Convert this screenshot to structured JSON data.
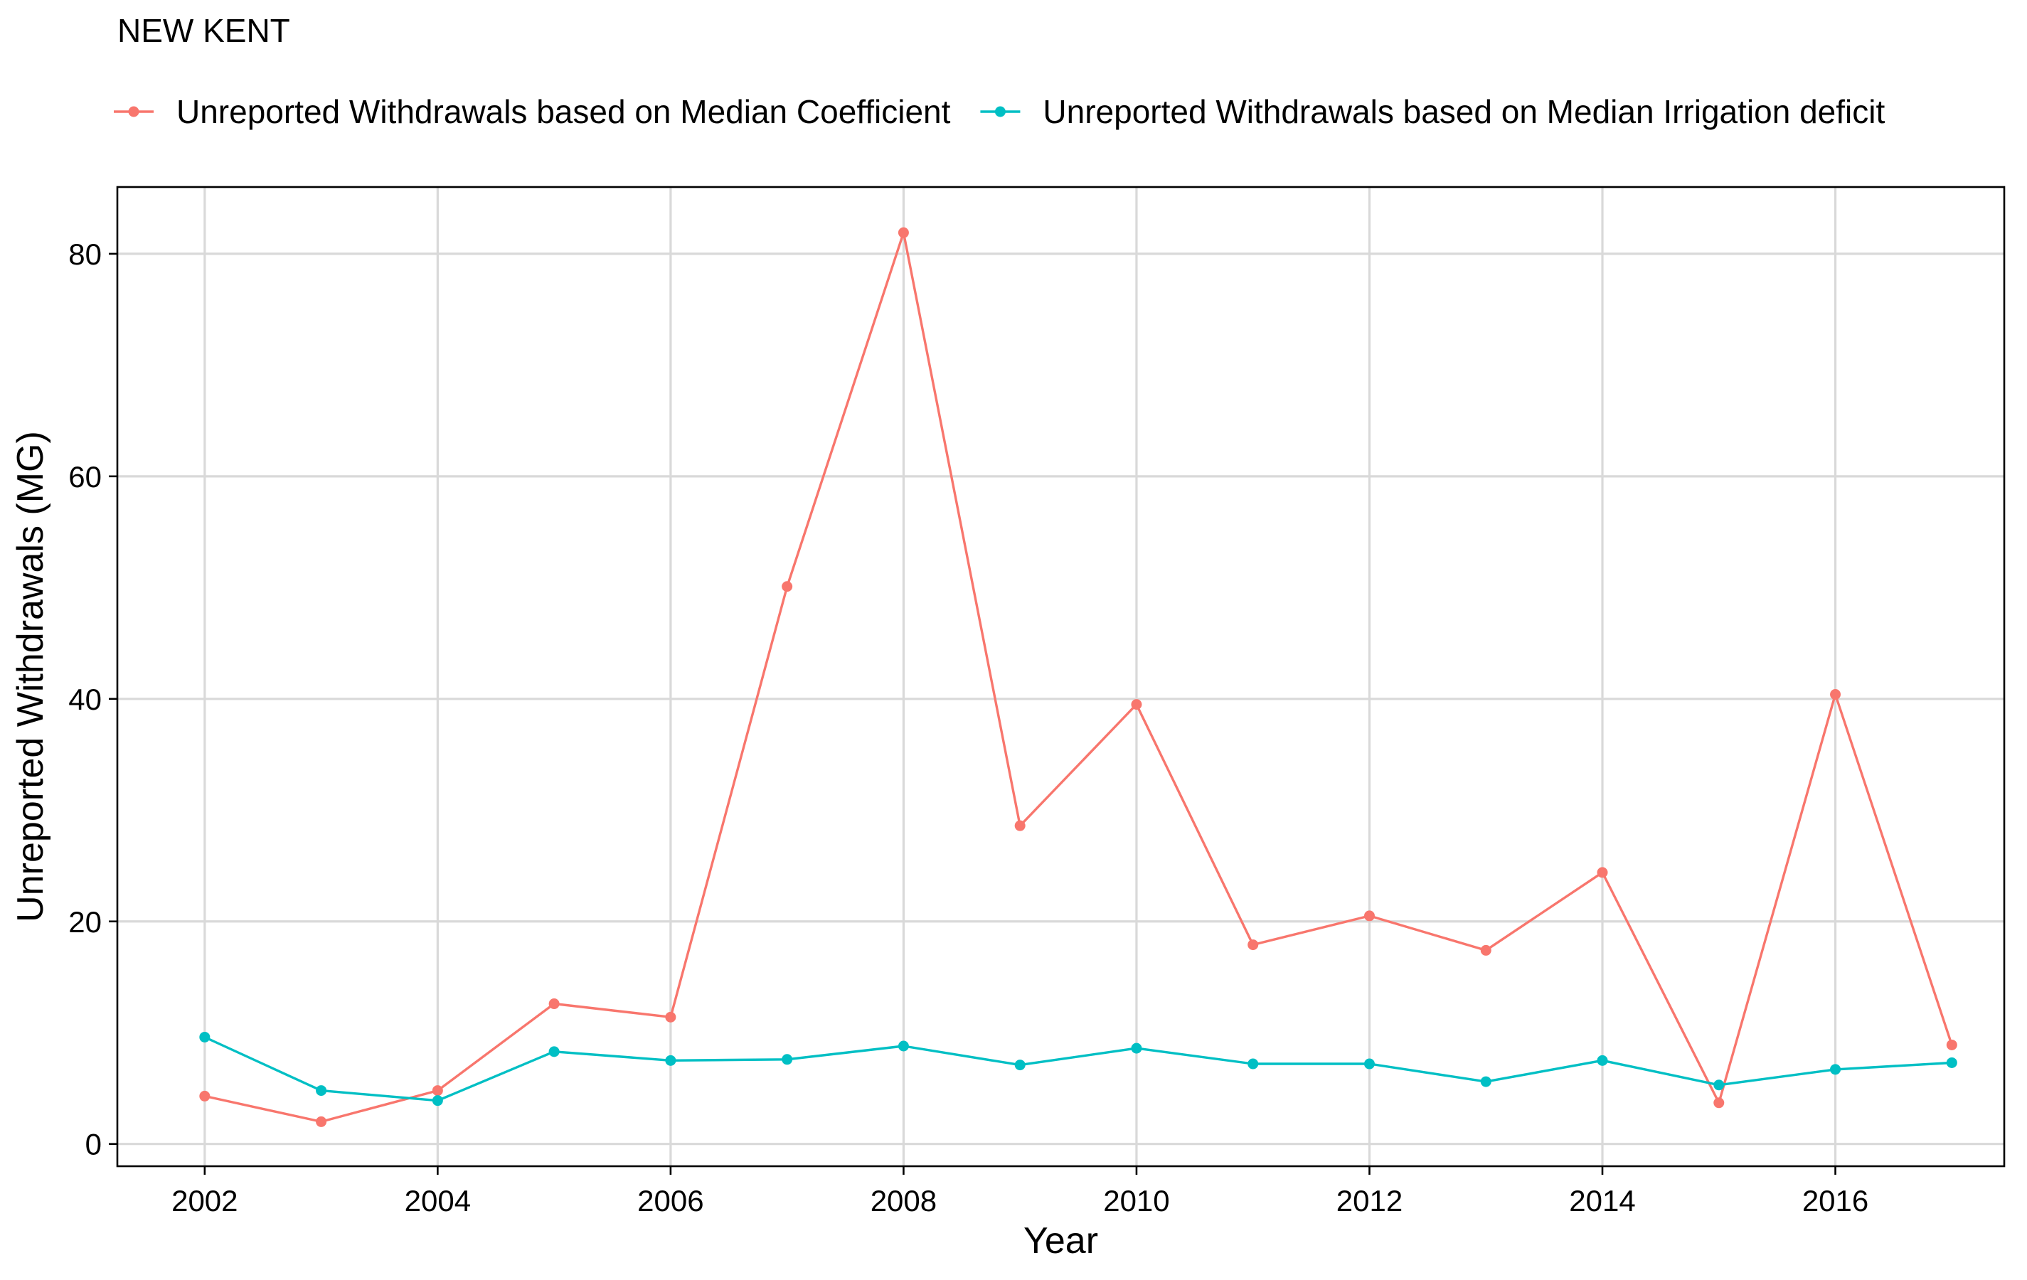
{
  "chart_data": {
    "type": "line",
    "title": "NEW KENT",
    "xlabel": "Year",
    "ylabel": "Unreported Withdrawals (MG)",
    "xlim": [
      2001.25,
      2017.45
    ],
    "ylim": [
      -2,
      86
    ],
    "x_ticks": [
      2002,
      2004,
      2006,
      2008,
      2010,
      2012,
      2014,
      2016
    ],
    "x_tick_labels": [
      "2002",
      "2004",
      "2006",
      "2008",
      "2010",
      "2012",
      "2014",
      "2016"
    ],
    "y_ticks": [
      0,
      20,
      40,
      60,
      80
    ],
    "y_tick_labels": [
      "0",
      "20",
      "40",
      "60",
      "80"
    ],
    "grid": true,
    "legend_position": "top",
    "x": [
      2002,
      2003,
      2004,
      2005,
      2006,
      2007,
      2008,
      2009,
      2010,
      2011,
      2012,
      2013,
      2014,
      2015,
      2016,
      2017
    ],
    "series": [
      {
        "name": "Unreported Withdrawals based on Median Coefficient",
        "color": "#F8766D",
        "values": [
          4.3,
          2.0,
          4.8,
          12.6,
          11.4,
          50.1,
          81.9,
          28.6,
          39.5,
          17.9,
          20.5,
          17.4,
          24.4,
          3.7,
          40.4,
          8.9
        ]
      },
      {
        "name": "Unreported Withdrawals based on Median Irrigation deficit",
        "color": "#00BFC4",
        "values": [
          9.6,
          4.8,
          3.9,
          8.3,
          7.5,
          7.6,
          8.8,
          7.1,
          8.6,
          7.2,
          7.2,
          5.6,
          7.5,
          5.3,
          6.7,
          7.3
        ]
      }
    ]
  }
}
